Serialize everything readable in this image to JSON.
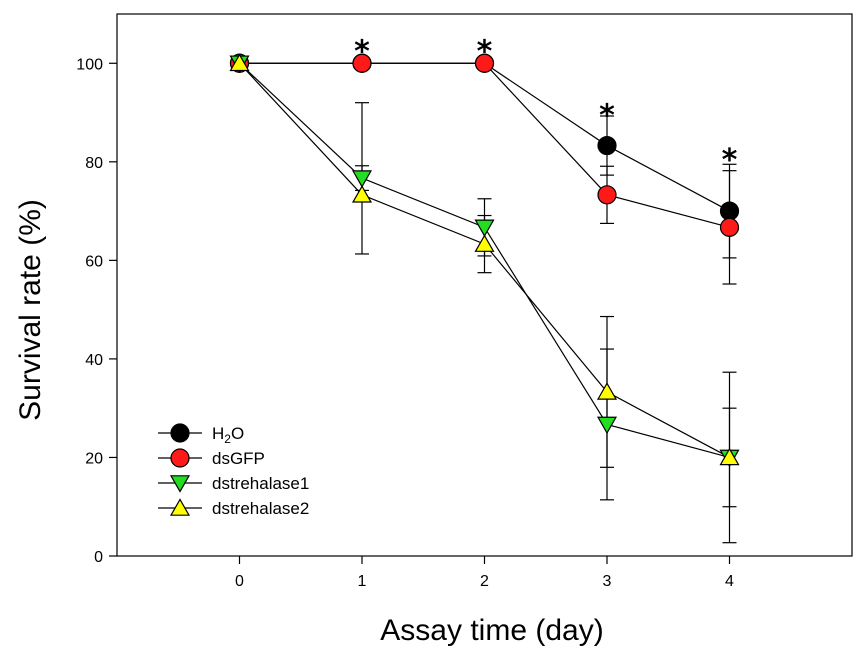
{
  "chart_data": {
    "type": "line",
    "xlabel": "Assay time (day)",
    "ylabel": "Survival rate (%)",
    "xlim": [
      -1,
      5
    ],
    "ylim": [
      0,
      110
    ],
    "x_ticks": [
      0,
      1,
      2,
      3,
      4
    ],
    "x_tick_labels": [
      "0",
      "1",
      "2",
      "3",
      "4"
    ],
    "y_ticks": [
      0,
      20,
      40,
      60,
      80,
      100
    ],
    "y_tick_labels": [
      "0",
      "20",
      "40",
      "60",
      "80",
      "100"
    ],
    "grid": false,
    "legend_position": "bottom-left",
    "x": [
      0,
      1,
      2,
      3,
      4
    ],
    "series": [
      {
        "name": "H2O",
        "label_main": "H",
        "label_sub": "2",
        "label_rest": "O",
        "marker": "circle",
        "color": "#000000",
        "values": [
          100,
          100,
          100,
          83.3,
          70.0
        ],
        "err_low": [
          0,
          0,
          0,
          6,
          9.5
        ],
        "err_high": [
          0,
          0,
          0,
          6,
          9.5
        ]
      },
      {
        "name": "dsGFP",
        "label_main": "dsGFP",
        "label_sub": "",
        "label_rest": "",
        "marker": "circle",
        "color": "#ff1a1a",
        "values": [
          100,
          100,
          100,
          73.3,
          66.7
        ],
        "err_low": [
          0,
          0,
          0,
          5.8,
          11.5
        ],
        "err_high": [
          0,
          0,
          0,
          5.8,
          11.5
        ]
      },
      {
        "name": "dstrehalase1",
        "label_main": "dstrehalase1",
        "label_sub": "",
        "label_rest": "",
        "marker": "triangle-down",
        "color": "#22dd22",
        "values": [
          100,
          76.7,
          66.7,
          26.7,
          20.0
        ],
        "err_low": [
          0,
          2.5,
          5.8,
          15.3,
          10.0
        ],
        "err_high": [
          0,
          2.5,
          5.8,
          15.3,
          10.0
        ]
      },
      {
        "name": "dstrehalase2",
        "label_main": "dstrehalase2",
        "label_sub": "",
        "label_rest": "",
        "marker": "triangle-up",
        "color": "#ffff00",
        "values": [
          100,
          73.3,
          63.3,
          33.3,
          20.0
        ],
        "err_low": [
          0,
          12.0,
          5.8,
          15.3,
          17.3
        ],
        "err_high": [
          0,
          18.7,
          5.8,
          15.3,
          17.3
        ]
      }
    ],
    "annotations": [
      {
        "text": "*",
        "x": 1,
        "y": 104
      },
      {
        "text": "*",
        "x": 2,
        "y": 104
      },
      {
        "text": "*",
        "x": 3,
        "y": 91
      },
      {
        "text": "*",
        "x": 4,
        "y": 82
      }
    ]
  }
}
